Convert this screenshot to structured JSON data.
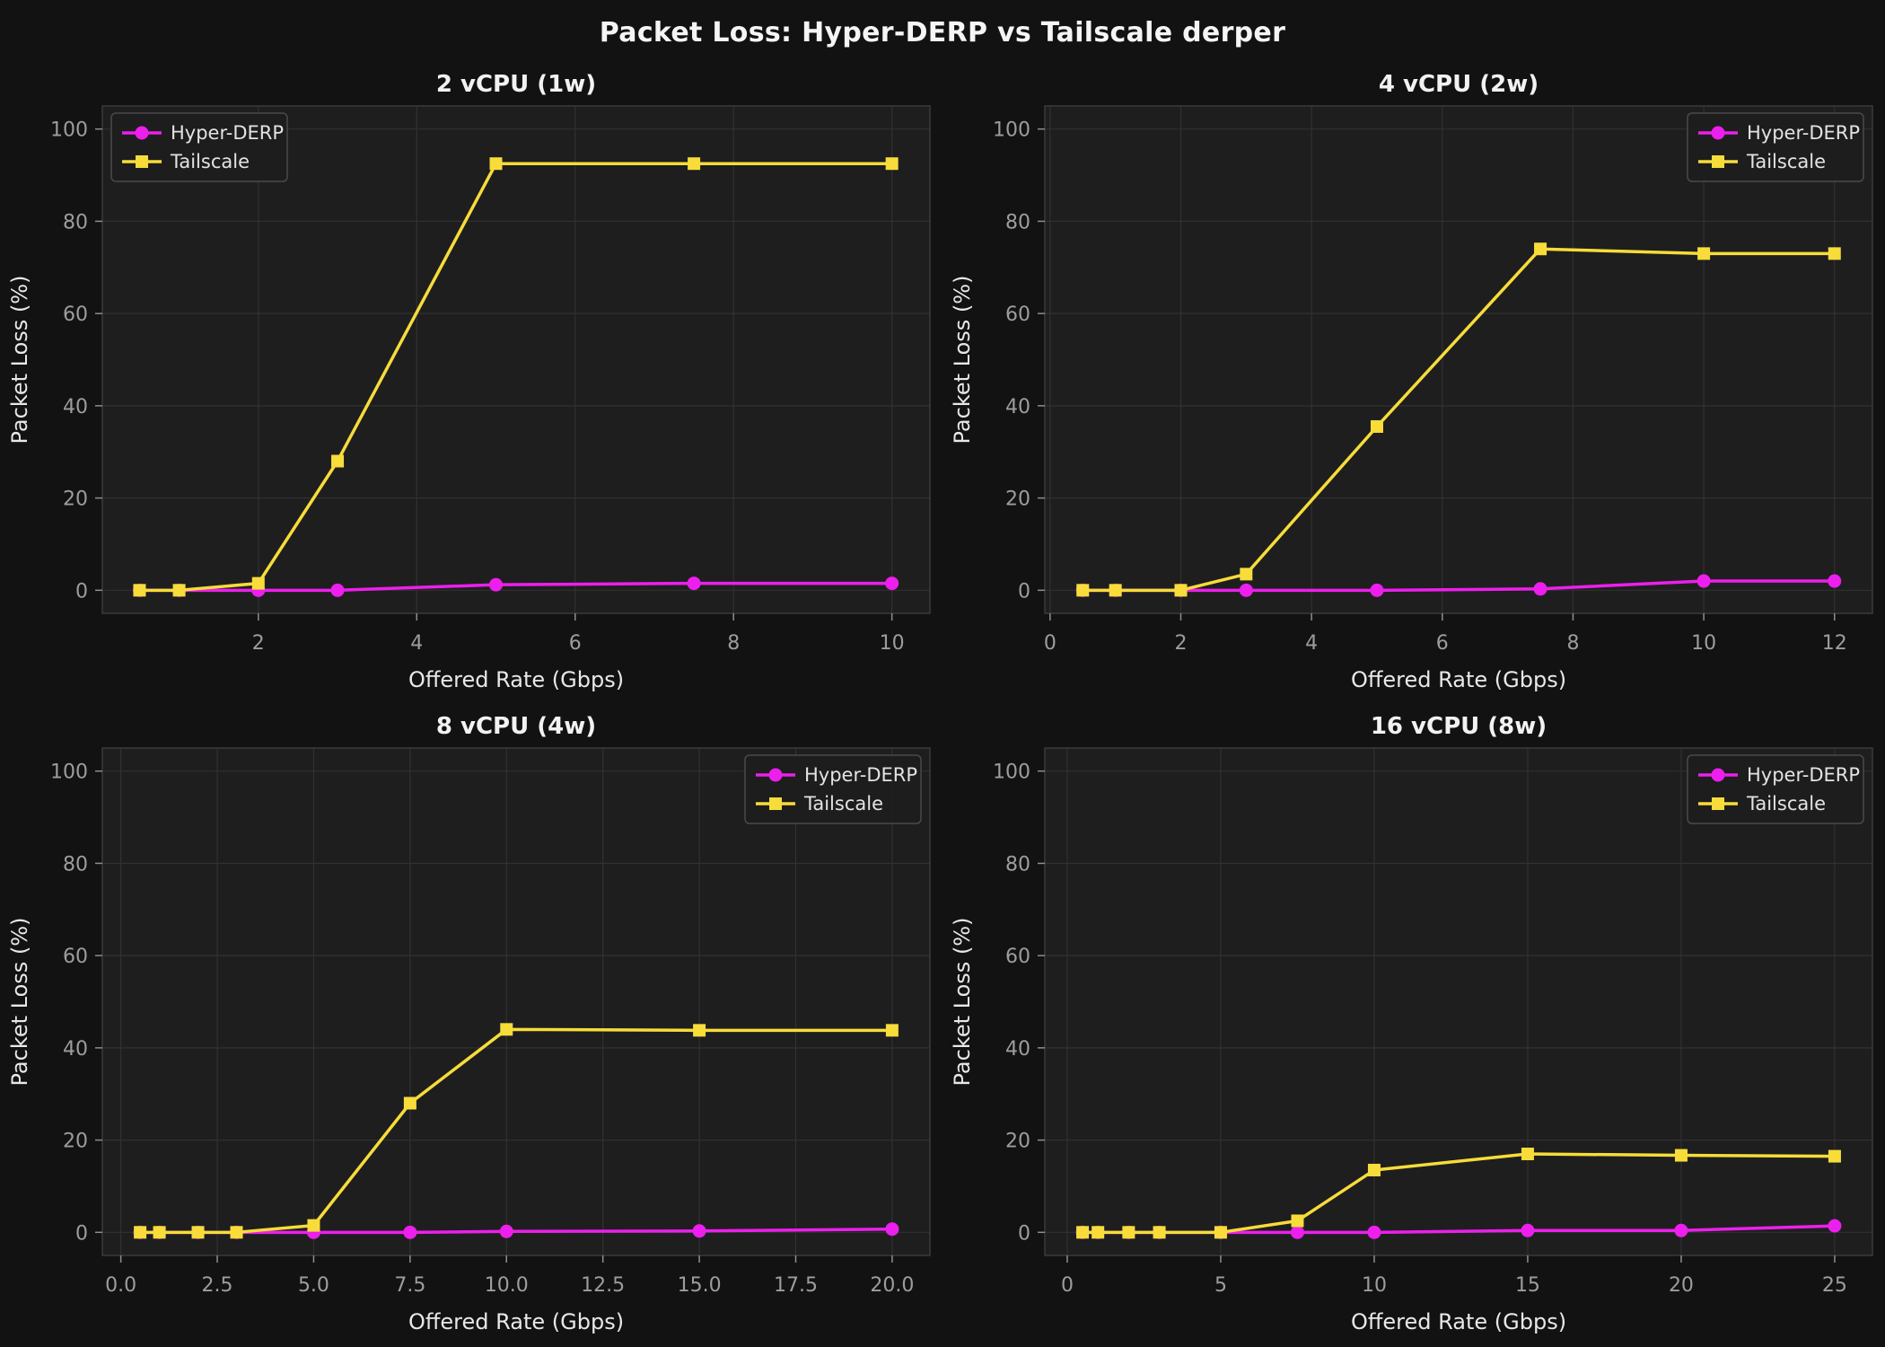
{
  "page": {
    "title": "Packet Loss: Hyper-DERP vs Tailscale derper"
  },
  "style": {
    "figure_bg": "#121212",
    "axes_bg": "#1e1e1f",
    "grid_color": "#313131",
    "spine_color": "#3a3a3a",
    "tick_color": "#8f8f8f",
    "tick_text_color": "#9d9d9d",
    "label_text_color": "#e8e8e8",
    "title_text_color": "#f2f2f2",
    "legend_bg": "#1d1d1d",
    "legend_border": "#4a4a4a",
    "legend_text_color": "#e3e3e3",
    "hyper_derp_color": "#ec1fec",
    "tailscale_color": "#f7dc3a"
  },
  "chart_data": [
    {
      "type": "line",
      "title": "2 vCPU (1w)",
      "xlabel": "Offered Rate (Gbps)",
      "ylabel": "Packet Loss (%)",
      "grid": true,
      "legend_position": "upper-left",
      "x": [
        0.5,
        1,
        2,
        3,
        5,
        7.5,
        10
      ],
      "series": [
        {
          "name": "Hyper-DERP",
          "color": "#ec1fec",
          "marker": "circle",
          "values": [
            0,
            0,
            0,
            0,
            1.2,
            1.5,
            1.5
          ]
        },
        {
          "name": "Tailscale",
          "color": "#f7dc3a",
          "marker": "square",
          "values": [
            0,
            0,
            1.5,
            28,
            92.5,
            92.5,
            92.5
          ]
        }
      ],
      "xticks": {
        "values": [
          2,
          4,
          6,
          8,
          10
        ],
        "labels": [
          "2",
          "4",
          "6",
          "8",
          "10"
        ]
      },
      "yticks": {
        "values": [
          0,
          20,
          40,
          60,
          80,
          100
        ],
        "labels": [
          "0",
          "20",
          "40",
          "60",
          "80",
          "100"
        ]
      },
      "xlim": [
        0.03,
        10.48
      ],
      "ylim": [
        -5,
        105
      ]
    },
    {
      "type": "line",
      "title": "4 vCPU (2w)",
      "xlabel": "Offered Rate (Gbps)",
      "ylabel": "Packet Loss (%)",
      "grid": true,
      "legend_position": "upper-right",
      "x": [
        0.5,
        1,
        2,
        3,
        5,
        7.5,
        10,
        12
      ],
      "series": [
        {
          "name": "Hyper-DERP",
          "color": "#ec1fec",
          "marker": "circle",
          "values": [
            0,
            0,
            0,
            0,
            0,
            0.3,
            2,
            2
          ]
        },
        {
          "name": "Tailscale",
          "color": "#f7dc3a",
          "marker": "square",
          "values": [
            0,
            0,
            0,
            3.5,
            35.5,
            74,
            73,
            73
          ]
        }
      ],
      "xticks": {
        "values": [
          0,
          2,
          4,
          6,
          8,
          10,
          12
        ],
        "labels": [
          "0",
          "2",
          "4",
          "6",
          "8",
          "10",
          "12"
        ]
      },
      "yticks": {
        "values": [
          0,
          20,
          40,
          60,
          80,
          100
        ],
        "labels": [
          "0",
          "20",
          "40",
          "60",
          "80",
          "100"
        ]
      },
      "xlim": [
        -0.08,
        12.58
      ],
      "ylim": [
        -5,
        105
      ]
    },
    {
      "type": "line",
      "title": "8 vCPU (4w)",
      "xlabel": "Offered Rate (Gbps)",
      "ylabel": "Packet Loss (%)",
      "grid": true,
      "legend_position": "upper-right",
      "x": [
        0.5,
        1,
        2,
        3,
        5,
        7.5,
        10,
        15,
        20
      ],
      "series": [
        {
          "name": "Hyper-DERP",
          "color": "#ec1fec",
          "marker": "circle",
          "values": [
            0,
            0,
            0,
            0,
            0,
            0,
            0.2,
            0.3,
            0.7
          ]
        },
        {
          "name": "Tailscale",
          "color": "#f7dc3a",
          "marker": "square",
          "values": [
            0,
            0,
            0,
            0,
            1.5,
            28,
            44,
            43.8,
            43.8
          ]
        }
      ],
      "xticks": {
        "values": [
          0,
          2.5,
          5,
          7.5,
          10,
          12.5,
          15,
          17.5,
          20
        ],
        "labels": [
          "0.0",
          "2.5",
          "5.0",
          "7.5",
          "10.0",
          "12.5",
          "15.0",
          "17.5",
          "20.0"
        ]
      },
      "yticks": {
        "values": [
          0,
          20,
          40,
          60,
          80,
          100
        ],
        "labels": [
          "0",
          "20",
          "40",
          "60",
          "80",
          "100"
        ]
      },
      "xlim": [
        -0.48,
        20.98
      ],
      "ylim": [
        -5,
        105
      ]
    },
    {
      "type": "line",
      "title": "16 vCPU (8w)",
      "xlabel": "Offered Rate (Gbps)",
      "ylabel": "Packet Loss (%)",
      "grid": true,
      "legend_position": "upper-right",
      "x": [
        0.5,
        1,
        2,
        3,
        5,
        7.5,
        10,
        15,
        20,
        25
      ],
      "series": [
        {
          "name": "Hyper-DERP",
          "color": "#ec1fec",
          "marker": "circle",
          "values": [
            0,
            0,
            0,
            0,
            0,
            0,
            0,
            0.4,
            0.4,
            1.4
          ]
        },
        {
          "name": "Tailscale",
          "color": "#f7dc3a",
          "marker": "square",
          "values": [
            0,
            0,
            0,
            0,
            0,
            2.5,
            13.5,
            17,
            16.7,
            16.5
          ]
        }
      ],
      "xticks": {
        "values": [
          0,
          5,
          10,
          15,
          20,
          25
        ],
        "labels": [
          "0",
          "5",
          "10",
          "15",
          "20",
          "25"
        ]
      },
      "yticks": {
        "values": [
          0,
          20,
          40,
          60,
          80,
          100
        ],
        "labels": [
          "0",
          "20",
          "40",
          "60",
          "80",
          "100"
        ]
      },
      "xlim": [
        -0.73,
        26.23
      ],
      "ylim": [
        -5,
        105
      ]
    }
  ],
  "legend": {
    "entries": [
      "Hyper-DERP",
      "Tailscale"
    ]
  }
}
